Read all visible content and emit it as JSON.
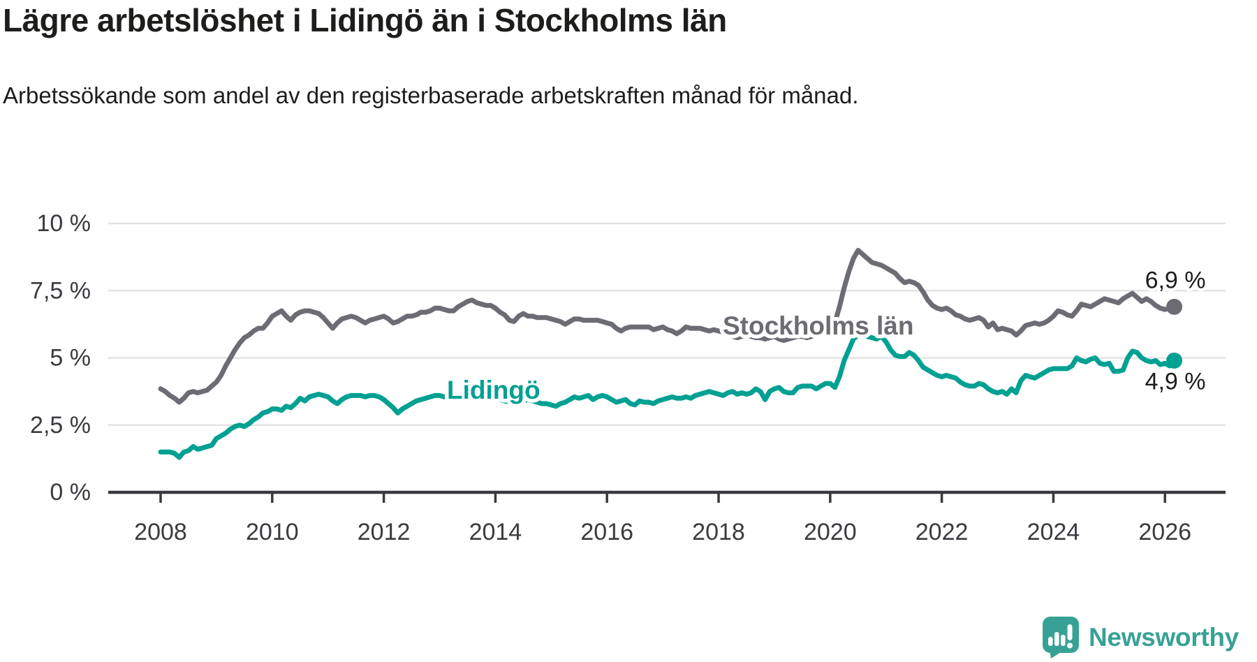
{
  "header": {
    "title": "Lägre arbetslöshet i Lidingö än i Stockholms län",
    "subtitle": "Arbetssökande som andel av den registerbaserade arbetskraften månad för månad."
  },
  "footer": {
    "brand": "Newsworthy"
  },
  "chart_data": {
    "type": "line",
    "unit": "%",
    "grid": true,
    "legend_position": "inline-labels",
    "x_axis": {
      "start_year": 2008.0,
      "step_months": 1,
      "ticks": [
        2008,
        2010,
        2012,
        2014,
        2016,
        2018,
        2020,
        2022,
        2024,
        2026
      ],
      "range": [
        2007.1,
        2027.1
      ]
    },
    "y_axis": {
      "ticks": [
        0,
        2.5,
        5,
        7.5,
        10
      ],
      "tick_labels": [
        "0 %",
        "2,5 %",
        "5 %",
        "7,5 %",
        "10 %"
      ],
      "range": [
        0,
        10
      ]
    },
    "colors": {
      "gridline": "#e3e3e3",
      "axis": "#3a3940",
      "tick_text": "#3b3a41",
      "title_text": "#1d1d1b",
      "brand_teal": "#38a195"
    },
    "series": [
      {
        "name": "Stockholms län",
        "color": "#6d6b73",
        "end_label": "6,9 %",
        "end_value": 6.9,
        "values": [
          3.85,
          3.75,
          3.6,
          3.5,
          3.35,
          3.5,
          3.7,
          3.75,
          3.7,
          3.75,
          3.8,
          3.95,
          4.1,
          4.35,
          4.7,
          5.0,
          5.3,
          5.55,
          5.75,
          5.85,
          6.0,
          6.1,
          6.1,
          6.3,
          6.55,
          6.65,
          6.75,
          6.55,
          6.4,
          6.6,
          6.7,
          6.75,
          6.75,
          6.7,
          6.65,
          6.5,
          6.3,
          6.1,
          6.3,
          6.45,
          6.5,
          6.55,
          6.5,
          6.4,
          6.3,
          6.4,
          6.45,
          6.5,
          6.55,
          6.45,
          6.3,
          6.35,
          6.45,
          6.55,
          6.55,
          6.6,
          6.7,
          6.7,
          6.75,
          6.85,
          6.85,
          6.8,
          6.75,
          6.75,
          6.9,
          7.0,
          7.1,
          7.15,
          7.05,
          7.0,
          6.95,
          6.95,
          6.85,
          6.7,
          6.6,
          6.4,
          6.35,
          6.55,
          6.65,
          6.55,
          6.55,
          6.5,
          6.5,
          6.5,
          6.45,
          6.4,
          6.35,
          6.25,
          6.35,
          6.45,
          6.45,
          6.4,
          6.4,
          6.4,
          6.4,
          6.35,
          6.3,
          6.25,
          6.1,
          6.0,
          6.1,
          6.15,
          6.15,
          6.15,
          6.15,
          6.15,
          6.05,
          6.1,
          6.15,
          6.05,
          6.0,
          5.9,
          6.0,
          6.15,
          6.1,
          6.1,
          6.1,
          6.05,
          6.0,
          6.05,
          6.0,
          5.95,
          5.9,
          5.8,
          5.75,
          5.8,
          5.85,
          5.8,
          5.75,
          5.75,
          5.7,
          5.75,
          5.8,
          5.7,
          5.65,
          5.7,
          5.75,
          5.8,
          5.8,
          5.75,
          5.8,
          5.85,
          5.9,
          6.0,
          6.1,
          6.3,
          6.9,
          7.6,
          8.2,
          8.7,
          9.0,
          8.85,
          8.7,
          8.55,
          8.5,
          8.45,
          8.35,
          8.25,
          8.15,
          7.95,
          7.8,
          7.85,
          7.8,
          7.7,
          7.45,
          7.15,
          6.95,
          6.85,
          6.8,
          6.85,
          6.75,
          6.6,
          6.55,
          6.45,
          6.4,
          6.45,
          6.5,
          6.4,
          6.15,
          6.3,
          6.05,
          6.1,
          6.05,
          6.0,
          5.85,
          6.0,
          6.2,
          6.25,
          6.3,
          6.25,
          6.3,
          6.4,
          6.55,
          6.75,
          6.7,
          6.6,
          6.55,
          6.75,
          7.0,
          6.95,
          6.9,
          7.0,
          7.1,
          7.2,
          7.15,
          7.1,
          7.05,
          7.2,
          7.3,
          7.4,
          7.25,
          7.1,
          7.2,
          7.1,
          6.95,
          6.85,
          6.8,
          6.85,
          6.9
        ]
      },
      {
        "name": "Lidingö",
        "color": "#00a092",
        "end_label": "4,9 %",
        "end_value": 4.9,
        "values": [
          1.5,
          1.5,
          1.5,
          1.45,
          1.3,
          1.5,
          1.55,
          1.7,
          1.6,
          1.65,
          1.7,
          1.75,
          2.0,
          2.1,
          2.2,
          2.35,
          2.45,
          2.5,
          2.45,
          2.55,
          2.7,
          2.8,
          2.95,
          3.0,
          3.1,
          3.1,
          3.05,
          3.2,
          3.15,
          3.3,
          3.5,
          3.4,
          3.55,
          3.6,
          3.65,
          3.6,
          3.55,
          3.4,
          3.3,
          3.45,
          3.55,
          3.6,
          3.6,
          3.6,
          3.55,
          3.6,
          3.6,
          3.55,
          3.45,
          3.3,
          3.15,
          2.95,
          3.1,
          3.2,
          3.3,
          3.4,
          3.45,
          3.5,
          3.55,
          3.6,
          3.6,
          3.55,
          3.5,
          3.55,
          3.6,
          3.6,
          3.55,
          3.6,
          3.55,
          3.5,
          3.5,
          3.45,
          3.5,
          3.45,
          3.4,
          3.35,
          3.4,
          3.45,
          3.4,
          3.45,
          3.4,
          3.35,
          3.3,
          3.3,
          3.25,
          3.2,
          3.3,
          3.35,
          3.45,
          3.55,
          3.5,
          3.55,
          3.6,
          3.45,
          3.55,
          3.6,
          3.55,
          3.45,
          3.35,
          3.4,
          3.45,
          3.3,
          3.25,
          3.4,
          3.35,
          3.35,
          3.3,
          3.4,
          3.45,
          3.5,
          3.55,
          3.5,
          3.5,
          3.55,
          3.5,
          3.6,
          3.65,
          3.7,
          3.75,
          3.7,
          3.65,
          3.6,
          3.7,
          3.75,
          3.65,
          3.7,
          3.65,
          3.7,
          3.85,
          3.75,
          3.45,
          3.75,
          3.85,
          3.9,
          3.75,
          3.7,
          3.7,
          3.9,
          3.95,
          3.95,
          3.95,
          3.85,
          3.95,
          4.05,
          4.05,
          3.9,
          4.3,
          4.9,
          5.3,
          5.7,
          5.85,
          5.9,
          5.8,
          5.75,
          5.7,
          5.8,
          5.6,
          5.3,
          5.1,
          5.05,
          5.05,
          5.2,
          5.1,
          4.9,
          4.65,
          4.55,
          4.45,
          4.35,
          4.3,
          4.35,
          4.3,
          4.25,
          4.1,
          4.0,
          3.95,
          3.95,
          4.05,
          4.0,
          3.85,
          3.75,
          3.7,
          3.75,
          3.65,
          3.85,
          3.7,
          4.15,
          4.35,
          4.3,
          4.25,
          4.35,
          4.45,
          4.55,
          4.6,
          4.6,
          4.6,
          4.6,
          4.7,
          5.0,
          4.9,
          4.85,
          4.95,
          5.0,
          4.8,
          4.75,
          4.8,
          4.5,
          4.5,
          4.55,
          5.0,
          5.25,
          5.2,
          5.0,
          4.9,
          4.85,
          4.9,
          4.75,
          4.8,
          4.7,
          4.9
        ]
      }
    ]
  }
}
